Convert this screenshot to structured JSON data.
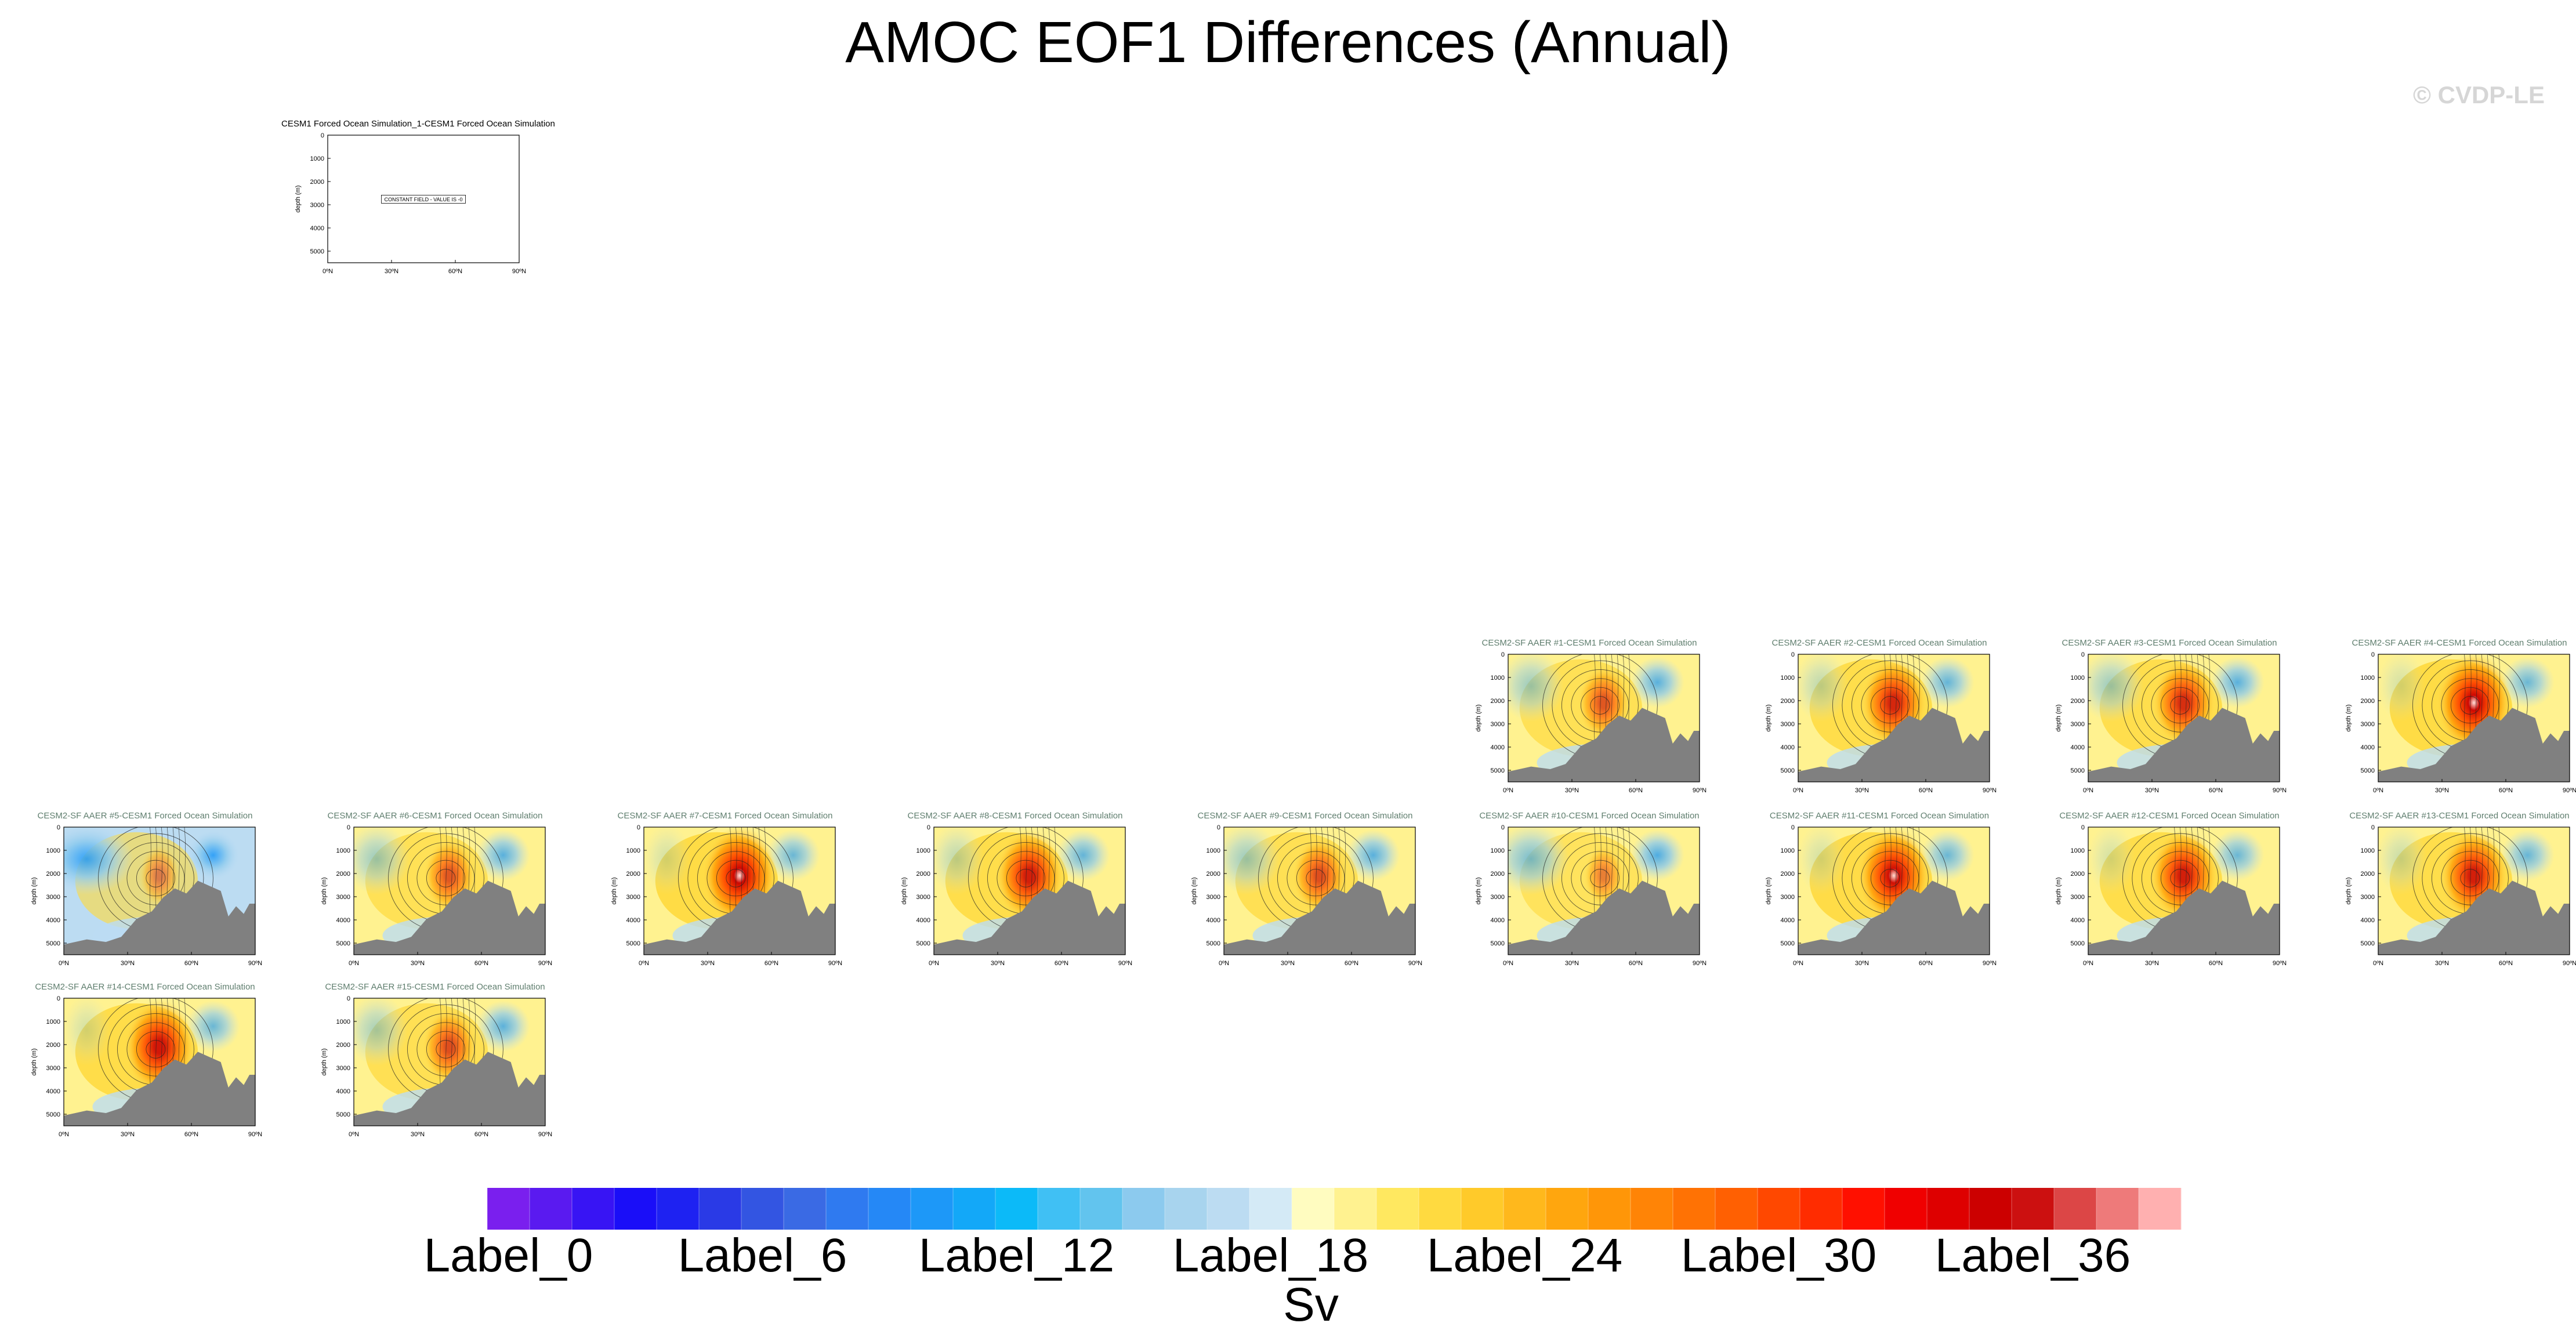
{
  "title": "AMOC EOF1 Differences (Annual)",
  "watermark": "© CVDP-LE",
  "chart_data": {
    "type": "heatmap",
    "xticks": [
      "0ºN",
      "30ºN",
      "60ºN",
      "90ºN"
    ],
    "yticks": [
      "0",
      "1000",
      "2000",
      "3000",
      "4000",
      "5000"
    ],
    "ylabel": "depth (m)",
    "colorbar": {
      "title": "Sv",
      "labels": [
        "Label_0",
        "Label_6",
        "Label_12",
        "Label_18",
        "Label_24",
        "Label_30",
        "Label_36"
      ],
      "label_indices": [
        0,
        6,
        12,
        18,
        24,
        30,
        36
      ],
      "colors": [
        "#7a1fee",
        "#5a1af0",
        "#3814f4",
        "#1a0ef8",
        "#1e22f2",
        "#2a3ae6",
        "#3355e2",
        "#3a6ae4",
        "#2f7af0",
        "#2588f6",
        "#1d98f8",
        "#13a8f8",
        "#0cbaf8",
        "#40c0f4",
        "#62c4ee",
        "#8ccaee",
        "#a8d4ee",
        "#bcdcf2",
        "#d4eaf6",
        "#fffcc0",
        "#fff290",
        "#ffe860",
        "#ffda40",
        "#ffca2a",
        "#ffb81c",
        "#ffa60e",
        "#ff9608",
        "#ff8406",
        "#ff7204",
        "#ff6002",
        "#ff4800",
        "#ff2c00",
        "#ff1000",
        "#f00000",
        "#de0000",
        "#cc0000",
        "#cc1010",
        "#dc4646",
        "#ee7a7a",
        "#ffb0b0"
      ]
    },
    "panels": [
      {
        "title": "CESM1 Forced Ocean Simulation_1-CESM1 Forced Ocean Simulation",
        "constant": true,
        "constant_text": "CONSTANT FIELD - VALUE IS -0",
        "intensity": 0,
        "cold": 0
      },
      {
        "title": "CESM2-SF AAER #1-CESM1 Forced Ocean Simulation",
        "intensity": 0.45,
        "cold": 0.45
      },
      {
        "title": "CESM2-SF AAER #2-CESM1 Forced Ocean Simulation",
        "intensity": 0.75,
        "cold": 0.3
      },
      {
        "title": "CESM2-SF AAER #3-CESM1 Forced Ocean Simulation",
        "intensity": 0.7,
        "cold": 0.45
      },
      {
        "title": "CESM2-SF AAER #4-CESM1 Forced Ocean Simulation",
        "intensity": 0.95,
        "cold": 0.2
      },
      {
        "title": "CESM2-SF AAER #5-CESM1 Forced Ocean Simulation",
        "intensity": 0.2,
        "cold": 0.85
      },
      {
        "title": "CESM2-SF AAER #6-CESM1 Forced Ocean Simulation",
        "intensity": 0.45,
        "cold": 0.45
      },
      {
        "title": "CESM2-SF AAER #7-CESM1 Forced Ocean Simulation",
        "intensity": 0.95,
        "cold": 0.2
      },
      {
        "title": "CESM2-SF AAER #8-CESM1 Forced Ocean Simulation",
        "intensity": 0.8,
        "cold": 0.3
      },
      {
        "title": "CESM2-SF AAER #9-CESM1 Forced Ocean Simulation",
        "intensity": 0.5,
        "cold": 0.45
      },
      {
        "title": "CESM2-SF AAER #10-CESM1 Forced Ocean Simulation",
        "intensity": 0.2,
        "cold": 0.6
      },
      {
        "title": "CESM2-SF AAER #11-CESM1 Forced Ocean Simulation",
        "intensity": 0.9,
        "cold": 0.2
      },
      {
        "title": "CESM2-SF AAER #12-CESM1 Forced Ocean Simulation",
        "intensity": 0.8,
        "cold": 0.2
      },
      {
        "title": "CESM2-SF AAER #13-CESM1 Forced Ocean Simulation",
        "intensity": 0.8,
        "cold": 0.25
      },
      {
        "title": "CESM2-SF AAER #14-CESM1 Forced Ocean Simulation",
        "intensity": 0.85,
        "cold": 0.2
      },
      {
        "title": "CESM2-SF AAER #15-CESM1 Forced Ocean Simulation",
        "intensity": 0.5,
        "cold": 0.4
      }
    ]
  }
}
